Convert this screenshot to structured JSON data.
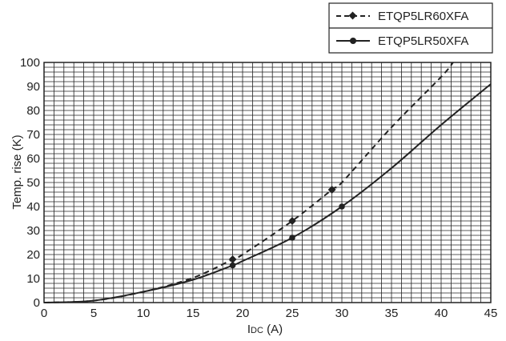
{
  "chart_data": {
    "type": "line",
    "title": "",
    "xlabel": "IDC (A)",
    "xlabel_parts": {
      "main": "I",
      "sub": "DC",
      "unit": " (A)"
    },
    "ylabel": "Temp. rise (K)",
    "xlim": [
      0,
      45
    ],
    "ylim": [
      0,
      100
    ],
    "x_ticks": [
      0,
      5,
      10,
      15,
      20,
      25,
      30,
      35,
      40,
      45
    ],
    "y_ticks": [
      0,
      10,
      20,
      30,
      40,
      50,
      60,
      70,
      80,
      90,
      100
    ],
    "grid": true,
    "legend_position": "top-right",
    "series": [
      {
        "name": "ETQP5LR60XFA",
        "style": "dashed",
        "marker": "diamond",
        "color": "#222222",
        "points": [
          [
            0,
            0
          ],
          [
            5,
            0.8
          ],
          [
            10,
            4.5
          ],
          [
            15,
            10.3
          ],
          [
            19,
            18
          ],
          [
            20,
            20
          ],
          [
            25,
            34
          ],
          [
            29,
            47
          ],
          [
            30,
            50
          ],
          [
            35,
            73
          ],
          [
            40,
            94
          ],
          [
            41.2,
            100
          ]
        ],
        "markers": [
          [
            19,
            18
          ],
          [
            25,
            34
          ],
          [
            29,
            47
          ]
        ]
      },
      {
        "name": "ETQP5LR50XFA",
        "style": "solid",
        "marker": "circle",
        "color": "#222222",
        "points": [
          [
            0,
            0
          ],
          [
            5,
            0.8
          ],
          [
            10,
            4.5
          ],
          [
            15,
            9.5
          ],
          [
            19,
            15.5
          ],
          [
            20,
            17.3
          ],
          [
            25,
            27
          ],
          [
            30,
            40
          ],
          [
            35,
            56
          ],
          [
            40,
            74
          ],
          [
            45,
            91
          ]
        ],
        "markers": [
          [
            19,
            15.5
          ],
          [
            25,
            27
          ],
          [
            30,
            40
          ]
        ]
      }
    ]
  }
}
